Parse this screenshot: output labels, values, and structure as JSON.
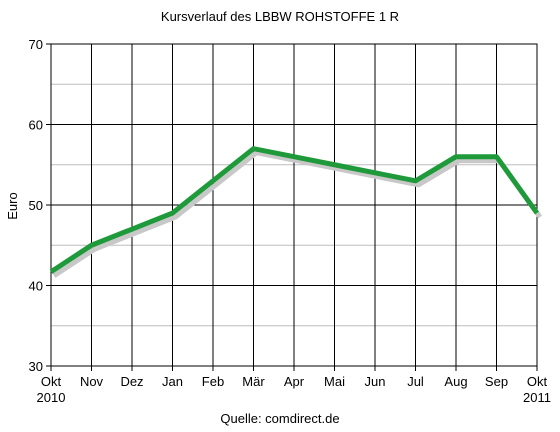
{
  "chart_data": {
    "type": "line",
    "title": "Kursverlauf des LBBW ROHSTOFFE 1 R",
    "source": "Quelle: comdirect.de",
    "ylabel": "Euro",
    "xlabel": "",
    "ylim": [
      30,
      70
    ],
    "y_ticks": [
      30,
      40,
      50,
      60,
      70
    ],
    "grid": true,
    "legend": "none",
    "categories": [
      "Okt 2010",
      "Nov",
      "Dez",
      "Jan",
      "Feb",
      "Mär",
      "Apr",
      "Mai",
      "Jun",
      "Jul",
      "Aug",
      "Sep",
      "Okt 2011"
    ],
    "x_tick_lines": [
      [
        "Okt",
        "2010"
      ],
      [
        "Nov"
      ],
      [
        "Dez"
      ],
      [
        "Jan"
      ],
      [
        "Feb"
      ],
      [
        "Mär"
      ],
      [
        "Apr"
      ],
      [
        "Mai"
      ],
      [
        "Jun"
      ],
      [
        "Jul"
      ],
      [
        "Aug"
      ],
      [
        "Sep"
      ],
      [
        "Okt",
        "2011"
      ]
    ],
    "series": [
      {
        "values": [
          41.7,
          45.0,
          47.0,
          49.0,
          53.0,
          57.0,
          56.0,
          55.0,
          54.0,
          53.0,
          56.0,
          56.0,
          49.0
        ]
      }
    ],
    "colors": {
      "line": "#1f9a3a",
      "shadow": "#c8c8c8",
      "grid": "#000000"
    }
  }
}
